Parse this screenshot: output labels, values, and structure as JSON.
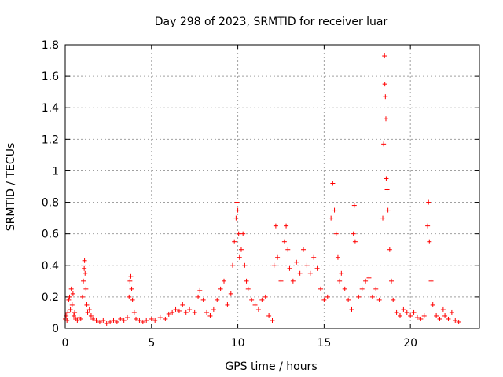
{
  "chart_data": {
    "type": "scatter",
    "title": "Day 298 of 2023, SRMTID for receiver luar",
    "xlabel": "GPS time / hours",
    "ylabel": "SRMTID / TECUs",
    "xlim": [
      0,
      24
    ],
    "ylim": [
      0,
      1.8
    ],
    "x_ticks": [
      0,
      5,
      10,
      15,
      20
    ],
    "x_tick_labels": [
      "0",
      "5",
      "10",
      "15",
      "20"
    ],
    "y_ticks": [
      0,
      0.2,
      0.4,
      0.6,
      0.8,
      1.0,
      1.2,
      1.4,
      1.6,
      1.8
    ],
    "y_tick_labels": [
      "0",
      "0.2",
      "0.4",
      "0.6",
      "0.8",
      "1",
      "1.2",
      "1.4",
      "1.6",
      "1.8"
    ],
    "grid": true,
    "marker": "+",
    "marker_color": "#ff0000",
    "series": [
      {
        "name": "SRMTID",
        "points": [
          [
            0.0,
            0.06
          ],
          [
            0.05,
            0.08
          ],
          [
            0.1,
            0.05
          ],
          [
            0.15,
            0.1
          ],
          [
            0.2,
            0.18
          ],
          [
            0.25,
            0.2
          ],
          [
            0.3,
            0.12
          ],
          [
            0.35,
            0.25
          ],
          [
            0.4,
            0.15
          ],
          [
            0.45,
            0.22
          ],
          [
            0.5,
            0.08
          ],
          [
            0.55,
            0.1
          ],
          [
            0.6,
            0.06
          ],
          [
            0.7,
            0.05
          ],
          [
            0.8,
            0.07
          ],
          [
            0.9,
            0.06
          ],
          [
            1.0,
            0.2
          ],
          [
            1.05,
            0.3
          ],
          [
            1.1,
            0.38
          ],
          [
            1.12,
            0.43
          ],
          [
            1.15,
            0.35
          ],
          [
            1.2,
            0.25
          ],
          [
            1.25,
            0.15
          ],
          [
            1.3,
            0.1
          ],
          [
            1.4,
            0.12
          ],
          [
            1.5,
            0.08
          ],
          [
            1.6,
            0.06
          ],
          [
            1.8,
            0.05
          ],
          [
            2.0,
            0.04
          ],
          [
            2.2,
            0.05
          ],
          [
            2.4,
            0.03
          ],
          [
            2.6,
            0.04
          ],
          [
            2.8,
            0.05
          ],
          [
            3.0,
            0.04
          ],
          [
            3.2,
            0.06
          ],
          [
            3.4,
            0.05
          ],
          [
            3.6,
            0.07
          ],
          [
            3.7,
            0.2
          ],
          [
            3.75,
            0.3
          ],
          [
            3.8,
            0.33
          ],
          [
            3.85,
            0.25
          ],
          [
            3.9,
            0.18
          ],
          [
            4.0,
            0.1
          ],
          [
            4.1,
            0.06
          ],
          [
            4.3,
            0.05
          ],
          [
            4.5,
            0.04
          ],
          [
            4.7,
            0.05
          ],
          [
            5.0,
            0.06
          ],
          [
            5.2,
            0.05
          ],
          [
            5.5,
            0.07
          ],
          [
            5.8,
            0.06
          ],
          [
            6.0,
            0.09
          ],
          [
            6.2,
            0.1
          ],
          [
            6.4,
            0.12
          ],
          [
            6.6,
            0.11
          ],
          [
            6.8,
            0.15
          ],
          [
            7.0,
            0.1
          ],
          [
            7.2,
            0.12
          ],
          [
            7.5,
            0.1
          ],
          [
            7.7,
            0.2
          ],
          [
            7.8,
            0.24
          ],
          [
            8.0,
            0.18
          ],
          [
            8.2,
            0.1
          ],
          [
            8.4,
            0.08
          ],
          [
            8.6,
            0.12
          ],
          [
            8.8,
            0.18
          ],
          [
            9.0,
            0.25
          ],
          [
            9.2,
            0.3
          ],
          [
            9.4,
            0.15
          ],
          [
            9.6,
            0.22
          ],
          [
            9.7,
            0.4
          ],
          [
            9.8,
            0.55
          ],
          [
            9.9,
            0.7
          ],
          [
            9.95,
            0.8
          ],
          [
            10.0,
            0.75
          ],
          [
            10.05,
            0.6
          ],
          [
            10.1,
            0.45
          ],
          [
            10.2,
            0.5
          ],
          [
            10.3,
            0.6
          ],
          [
            10.4,
            0.4
          ],
          [
            10.5,
            0.3
          ],
          [
            10.6,
            0.25
          ],
          [
            10.8,
            0.18
          ],
          [
            11.0,
            0.15
          ],
          [
            11.2,
            0.12
          ],
          [
            11.4,
            0.18
          ],
          [
            11.6,
            0.2
          ],
          [
            11.8,
            0.08
          ],
          [
            12.0,
            0.05
          ],
          [
            12.1,
            0.4
          ],
          [
            12.2,
            0.65
          ],
          [
            12.3,
            0.45
          ],
          [
            12.5,
            0.3
          ],
          [
            12.7,
            0.55
          ],
          [
            12.8,
            0.65
          ],
          [
            12.9,
            0.5
          ],
          [
            13.0,
            0.38
          ],
          [
            13.2,
            0.3
          ],
          [
            13.4,
            0.42
          ],
          [
            13.6,
            0.35
          ],
          [
            13.8,
            0.5
          ],
          [
            14.0,
            0.4
          ],
          [
            14.2,
            0.35
          ],
          [
            14.4,
            0.45
          ],
          [
            14.6,
            0.38
          ],
          [
            14.8,
            0.25
          ],
          [
            15.0,
            0.18
          ],
          [
            15.2,
            0.2
          ],
          [
            15.4,
            0.7
          ],
          [
            15.5,
            0.92
          ],
          [
            15.6,
            0.75
          ],
          [
            15.7,
            0.6
          ],
          [
            15.8,
            0.45
          ],
          [
            15.9,
            0.3
          ],
          [
            16.0,
            0.35
          ],
          [
            16.2,
            0.25
          ],
          [
            16.4,
            0.18
          ],
          [
            16.6,
            0.12
          ],
          [
            16.7,
            0.6
          ],
          [
            16.75,
            0.78
          ],
          [
            16.8,
            0.55
          ],
          [
            17.0,
            0.2
          ],
          [
            17.2,
            0.25
          ],
          [
            17.4,
            0.3
          ],
          [
            17.6,
            0.32
          ],
          [
            17.8,
            0.2
          ],
          [
            18.0,
            0.25
          ],
          [
            18.2,
            0.18
          ],
          [
            18.4,
            0.7
          ],
          [
            18.45,
            1.17
          ],
          [
            18.5,
            1.73
          ],
          [
            18.52,
            1.55
          ],
          [
            18.55,
            1.47
          ],
          [
            18.58,
            1.33
          ],
          [
            18.6,
            0.95
          ],
          [
            18.65,
            0.88
          ],
          [
            18.7,
            0.75
          ],
          [
            18.8,
            0.5
          ],
          [
            18.9,
            0.3
          ],
          [
            19.0,
            0.18
          ],
          [
            19.2,
            0.1
          ],
          [
            19.4,
            0.08
          ],
          [
            19.6,
            0.12
          ],
          [
            19.8,
            0.1
          ],
          [
            20.0,
            0.08
          ],
          [
            20.2,
            0.1
          ],
          [
            20.4,
            0.07
          ],
          [
            20.6,
            0.06
          ],
          [
            20.8,
            0.08
          ],
          [
            21.0,
            0.65
          ],
          [
            21.05,
            0.8
          ],
          [
            21.1,
            0.55
          ],
          [
            21.2,
            0.3
          ],
          [
            21.3,
            0.15
          ],
          [
            21.5,
            0.08
          ],
          [
            21.7,
            0.06
          ],
          [
            21.9,
            0.12
          ],
          [
            22.0,
            0.08
          ],
          [
            22.2,
            0.06
          ],
          [
            22.4,
            0.1
          ],
          [
            22.6,
            0.05
          ],
          [
            22.8,
            0.04
          ]
        ]
      }
    ]
  }
}
